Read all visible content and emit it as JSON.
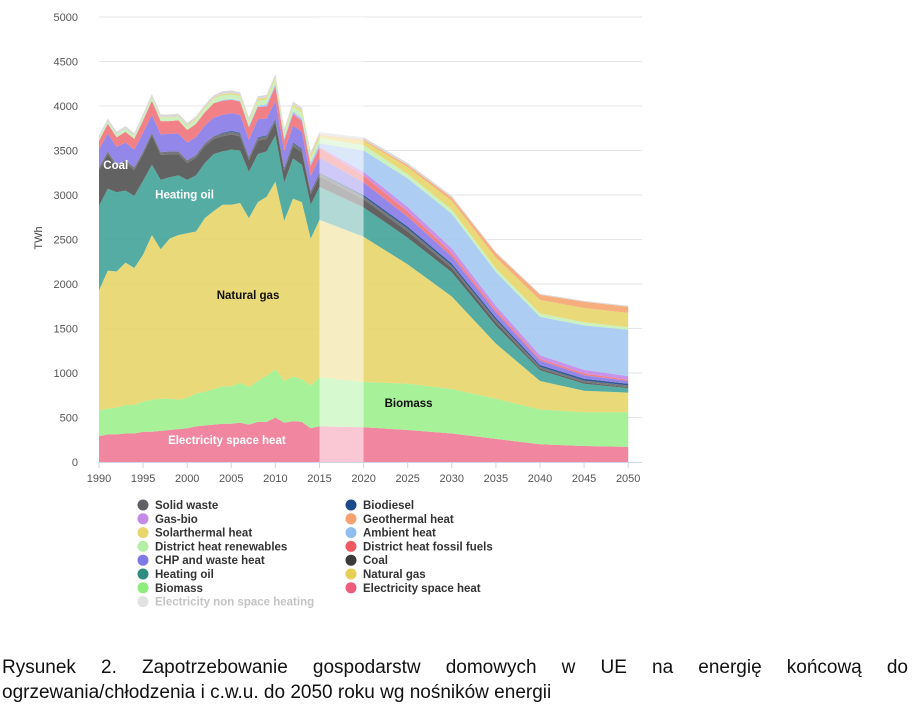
{
  "chart_data": {
    "type": "area",
    "stacked": true,
    "ylabel": "TWh",
    "ylim": [
      0,
      5000
    ],
    "xlim": [
      1990,
      2051
    ],
    "y_ticks": [
      0,
      500,
      1000,
      1500,
      2000,
      2500,
      3000,
      3500,
      4000,
      4500,
      5000
    ],
    "x_ticks": [
      1990,
      1995,
      2000,
      2005,
      2010,
      2015,
      2020,
      2025,
      2030,
      2035,
      2040,
      2045,
      2050
    ],
    "grid": true,
    "legend_placement": "bottom",
    "highlight_band": [
      2015,
      2020
    ],
    "x": [
      1990,
      1991,
      1992,
      1993,
      1994,
      1995,
      1996,
      1997,
      1998,
      1999,
      2000,
      2001,
      2002,
      2003,
      2004,
      2005,
      2006,
      2007,
      2008,
      2009,
      2010,
      2011,
      2012,
      2013,
      2014,
      2015,
      2020,
      2025,
      2030,
      2035,
      2040,
      2045,
      2050
    ],
    "series": [
      {
        "name": "Electricity space heat",
        "color": "#f07c99",
        "values": [
          290,
          310,
          310,
          320,
          320,
          340,
          340,
          350,
          360,
          370,
          380,
          400,
          410,
          420,
          430,
          430,
          440,
          420,
          450,
          450,
          500,
          440,
          460,
          450,
          380,
          400,
          390,
          360,
          320,
          260,
          200,
          180,
          170
        ]
      },
      {
        "name": "Biomass",
        "color": "#9ff08f",
        "values": [
          290,
          290,
          300,
          320,
          320,
          340,
          360,
          360,
          350,
          330,
          340,
          370,
          380,
          400,
          420,
          420,
          450,
          420,
          460,
          520,
          540,
          470,
          500,
          480,
          480,
          550,
          510,
          520,
          500,
          450,
          390,
          380,
          390
        ]
      },
      {
        "name": "Natural gas",
        "color": "#e8d66c",
        "values": [
          1350,
          1550,
          1530,
          1600,
          1540,
          1650,
          1850,
          1680,
          1800,
          1850,
          1850,
          1820,
          1950,
          2000,
          2040,
          2040,
          2020,
          1900,
          2010,
          2010,
          2110,
          1800,
          2000,
          1990,
          1650,
          1770,
          1630,
          1340,
          1040,
          620,
          320,
          240,
          220
        ]
      },
      {
        "name": "Heating oil",
        "color": "#47a59b",
        "values": [
          950,
          920,
          890,
          810,
          810,
          830,
          790,
          780,
          690,
          670,
          600,
          630,
          620,
          640,
          600,
          620,
          590,
          520,
          540,
          510,
          520,
          430,
          450,
          420,
          380,
          370,
          330,
          300,
          270,
          200,
          120,
          80,
          50
        ]
      },
      {
        "name": "Coal",
        "color": "#555555",
        "values": [
          400,
          390,
          280,
          310,
          290,
          300,
          330,
          280,
          260,
          240,
          190,
          200,
          190,
          170,
          170,
          170,
          160,
          130,
          150,
          140,
          150,
          130,
          140,
          140,
          120,
          120,
          90,
          70,
          50,
          40,
          20,
          15,
          10
        ]
      },
      {
        "name": "Solid waste",
        "color": "#6b6b70",
        "values": [
          30,
          30,
          30,
          30,
          30,
          30,
          30,
          30,
          30,
          30,
          30,
          30,
          30,
          30,
          30,
          30,
          30,
          30,
          30,
          30,
          30,
          30,
          30,
          30,
          25,
          30,
          30,
          30,
          25,
          25,
          20,
          20,
          20
        ]
      },
      {
        "name": "Biodiesel",
        "color": "#1f4e8c",
        "values": [
          0,
          0,
          0,
          0,
          0,
          0,
          0,
          0,
          0,
          0,
          0,
          0,
          0,
          0,
          10,
          10,
          10,
          10,
          10,
          10,
          10,
          10,
          10,
          10,
          10,
          10,
          20,
          25,
          25,
          25,
          20,
          20,
          20
        ]
      },
      {
        "name": "CHP and waste heat",
        "color": "#8a7ee8",
        "values": [
          200,
          200,
          200,
          200,
          200,
          210,
          200,
          200,
          200,
          200,
          200,
          200,
          200,
          210,
          200,
          200,
          200,
          190,
          200,
          190,
          200,
          180,
          190,
          190,
          170,
          170,
          140,
          110,
          80,
          60,
          50,
          40,
          30
        ]
      },
      {
        "name": "District heat fossil fuels",
        "color": "#f0767c",
        "values": [
          100,
          110,
          110,
          120,
          120,
          140,
          160,
          150,
          140,
          150,
          140,
          150,
          150,
          160,
          160,
          150,
          150,
          140,
          140,
          130,
          160,
          120,
          130,
          120,
          110,
          110,
          80,
          60,
          40,
          30,
          20,
          20,
          15
        ]
      },
      {
        "name": "Gas-bio",
        "color": "#c38ae6",
        "values": [
          0,
          0,
          0,
          0,
          0,
          0,
          0,
          0,
          0,
          0,
          0,
          0,
          0,
          0,
          0,
          0,
          0,
          0,
          0,
          10,
          10,
          10,
          10,
          10,
          10,
          10,
          40,
          50,
          50,
          45,
          40,
          40,
          40
        ]
      },
      {
        "name": "Ambient heat",
        "color": "#a6c9f2",
        "values": [
          0,
          0,
          0,
          0,
          0,
          0,
          0,
          0,
          0,
          0,
          0,
          0,
          0,
          0,
          10,
          10,
          10,
          15,
          15,
          20,
          20,
          20,
          20,
          25,
          30,
          40,
          240,
          320,
          390,
          380,
          430,
          500,
          520
        ]
      },
      {
        "name": "District heat renewables",
        "color": "#c6f0b8",
        "values": [
          30,
          30,
          30,
          35,
          35,
          40,
          40,
          40,
          40,
          40,
          40,
          45,
          45,
          50,
          50,
          50,
          50,
          50,
          55,
          55,
          60,
          55,
          60,
          60,
          55,
          60,
          60,
          50,
          45,
          40,
          40,
          35,
          30
        ]
      },
      {
        "name": "Solarthermal heat",
        "color": "#e8d66c",
        "values": [
          0,
          0,
          0,
          0,
          0,
          0,
          5,
          5,
          5,
          5,
          10,
          10,
          10,
          10,
          15,
          15,
          15,
          15,
          20,
          20,
          20,
          20,
          20,
          25,
          25,
          30,
          50,
          80,
          100,
          120,
          150,
          160,
          160
        ]
      },
      {
        "name": "Geothermal heat",
        "color": "#f5a773",
        "values": [
          0,
          0,
          0,
          0,
          0,
          0,
          0,
          0,
          0,
          0,
          0,
          0,
          0,
          0,
          0,
          0,
          0,
          0,
          0,
          0,
          0,
          0,
          0,
          0,
          5,
          5,
          10,
          20,
          35,
          50,
          60,
          70,
          70
        ]
      },
      {
        "name": "Electricity non space heating",
        "color": "#d6d6d6",
        "values": [
          30,
          30,
          30,
          30,
          30,
          30,
          30,
          30,
          30,
          30,
          30,
          30,
          30,
          30,
          30,
          30,
          30,
          30,
          30,
          30,
          30,
          30,
          30,
          30,
          30,
          30,
          30,
          25,
          20,
          15,
          10,
          10,
          10
        ]
      }
    ],
    "annotations": [
      {
        "text": "Coal",
        "x": 1991.9,
        "y": 3290
      },
      {
        "text": "Heating oil",
        "x": 1999.7,
        "y": 2960
      },
      {
        "text": "Natural gas",
        "x": 2006.9,
        "y": 1830
      },
      {
        "text": "Biomass",
        "x": 2025.1,
        "y": 620
      },
      {
        "text": "Electricity space heat",
        "x": 2004.5,
        "y": 200
      }
    ],
    "legend": {
      "left": [
        {
          "name": "Solid waste",
          "color": "#5f5f66"
        },
        {
          "name": "Gas-bio",
          "color": "#c38ae6"
        },
        {
          "name": "Solarthermal heat",
          "color": "#e8d66c"
        },
        {
          "name": "District heat renewables",
          "color": "#b4eea6"
        },
        {
          "name": "CHP and waste heat",
          "color": "#7f78e6"
        },
        {
          "name": "Heating oil",
          "color": "#2e8b80"
        },
        {
          "name": "Biomass",
          "color": "#8fed7e"
        },
        {
          "name": "Electricity non space heating",
          "color": "#cfcfcf",
          "faded": true
        }
      ],
      "right": [
        {
          "name": "Biodiesel",
          "color": "#1a4a8a"
        },
        {
          "name": "Geothermal heat",
          "color": "#f5a270"
        },
        {
          "name": "Ambient heat",
          "color": "#8fbdf0"
        },
        {
          "name": "District heat fossil fuels",
          "color": "#ee5a60"
        },
        {
          "name": "Coal",
          "color": "#3a3a3a"
        },
        {
          "name": "Natural gas",
          "color": "#e6cf55"
        },
        {
          "name": "Electricity space heat",
          "color": "#ee5c7e"
        }
      ]
    }
  },
  "caption": "Rysunek 2. Zapotrzebowanie gospodarstw domowych w UE na energię końcową do ogrzewania/chłodzenia i c.w.u. do 2050 roku wg nośników energii"
}
